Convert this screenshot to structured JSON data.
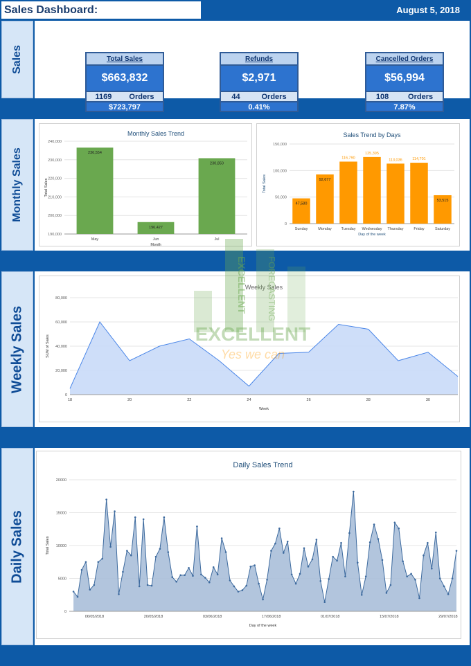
{
  "header": {
    "title": "Sales Dashboard:",
    "date": "August 5, 2018"
  },
  "sections": {
    "sales": "Sales",
    "monthly": "Monthly Sales",
    "weekly": "Weekly Sales",
    "daily": "Daily Sales"
  },
  "kpis": [
    {
      "title": "Total Sales",
      "value": "$663,832",
      "orders_count": "1169",
      "orders_label": "Orders",
      "bottom": "$723,797"
    },
    {
      "title": "Refunds",
      "value": "$2,971",
      "orders_count": "44",
      "orders_label": "Orders",
      "bottom": "0.41%"
    },
    {
      "title": "Cancelled Orders",
      "value": "$56,994",
      "orders_count": "108",
      "orders_label": "Orders",
      "bottom": "7.87%"
    }
  ],
  "watermark": {
    "brand": "EXCELLENT",
    "slogan": "Yes we can",
    "bar1": "EXCELLENT",
    "bar2": "FORECASTING"
  },
  "colors": {
    "navy": "#0d5aa7",
    "green": "#6aa84f",
    "orange": "#ff9900",
    "area": "#c9daf8",
    "line": "#4a86e8",
    "daily_fill": "#aabfd9",
    "daily_line": "#3d6a9e",
    "title": "#1f4e79"
  },
  "chart_data": [
    {
      "type": "bar",
      "title": "Monthly Sales Trend",
      "xlabel": "Month",
      "ylabel": "Total Sales",
      "categories": [
        "May",
        "Jun",
        "Jul"
      ],
      "values": [
        236554,
        196427,
        230850
      ],
      "value_labels": [
        "236,554",
        "196,427",
        "230,850"
      ],
      "ylim": [
        190000,
        240000
      ],
      "yticks": [
        "190,000",
        "200,000",
        "210,000",
        "220,000",
        "230,000",
        "240,000"
      ],
      "grid": true
    },
    {
      "type": "bar",
      "title": "Sales Trend by Days",
      "xlabel": "Day of the week",
      "ylabel": "Total Sales",
      "categories": [
        "Sunday",
        "Monday",
        "Tuesday",
        "Wednesday",
        "Thursday",
        "Friday",
        "Saturday"
      ],
      "values": [
        47580,
        92677,
        116790,
        125395,
        113036,
        114701,
        53515
      ],
      "value_labels": [
        "47,580",
        "92,677",
        "116,790",
        "125,395",
        "113,036",
        "114,701",
        "53,515"
      ],
      "ylim": [
        0,
        150000
      ],
      "yticks": [
        "0",
        "50,000",
        "100,000",
        "150,000"
      ],
      "grid": true
    },
    {
      "type": "area",
      "title": "Weekly Sales",
      "xlabel": "Week",
      "ylabel": "SUM of Sales",
      "x": [
        18,
        19,
        20,
        21,
        22,
        23,
        24,
        25,
        26,
        27,
        28,
        29,
        30,
        31
      ],
      "values": [
        5000,
        60000,
        28000,
        40000,
        46000,
        28000,
        7000,
        34000,
        35000,
        58000,
        54000,
        28000,
        35000,
        15000
      ],
      "xlim": [
        18,
        31
      ],
      "ylim": [
        0,
        80000
      ],
      "xticks": [
        "18",
        "20",
        "22",
        "24",
        "26",
        "28",
        "30"
      ],
      "yticks": [
        "0",
        "20,000",
        "40,000",
        "60,000",
        "80,000"
      ],
      "grid": true
    },
    {
      "type": "area",
      "title": "Daily Sales Trend",
      "xlabel": "Day of the week",
      "ylabel": "Total Sales",
      "x_start": "2018-05-01",
      "x_end": "2018-07-31",
      "values": [
        3000,
        2200,
        6300,
        7500,
        3300,
        4000,
        7500,
        8000,
        17000,
        9800,
        15200,
        2600,
        6000,
        9200,
        8500,
        14300,
        3800,
        14000,
        4000,
        3900,
        8300,
        9500,
        14300,
        9000,
        5200,
        4500,
        5500,
        5500,
        6600,
        5400,
        12900,
        5600,
        5100,
        4400,
        6700,
        5600,
        11100,
        9000,
        4700,
        3800,
        3000,
        3200,
        3900,
        6800,
        7000,
        4200,
        1800,
        4800,
        9200,
        10300,
        12600,
        8900,
        10600,
        5600,
        4200,
        5700,
        9600,
        6800,
        7900,
        10900,
        4600,
        1400,
        4900,
        8300,
        7700,
        10400,
        5300,
        11900,
        18200,
        7400,
        2500,
        5300,
        10500,
        13200,
        11000,
        7800,
        2800,
        4000,
        13500,
        12600,
        7600,
        5300,
        5700,
        4800,
        2000,
        8500,
        10400,
        6500,
        12000,
        5000,
        3800,
        2600,
        5000,
        9200
      ],
      "xlim": [
        "2018-04-30",
        "2018-07-31"
      ],
      "ylim": [
        0,
        20000
      ],
      "xticks": [
        "06/05/2018",
        "20/05/2018",
        "03/06/2018",
        "17/06/2018",
        "01/07/2018",
        "15/07/2018",
        "29/07/2018"
      ],
      "yticks": [
        "0",
        "5000",
        "10000",
        "15000",
        "20000"
      ],
      "grid": true
    }
  ]
}
